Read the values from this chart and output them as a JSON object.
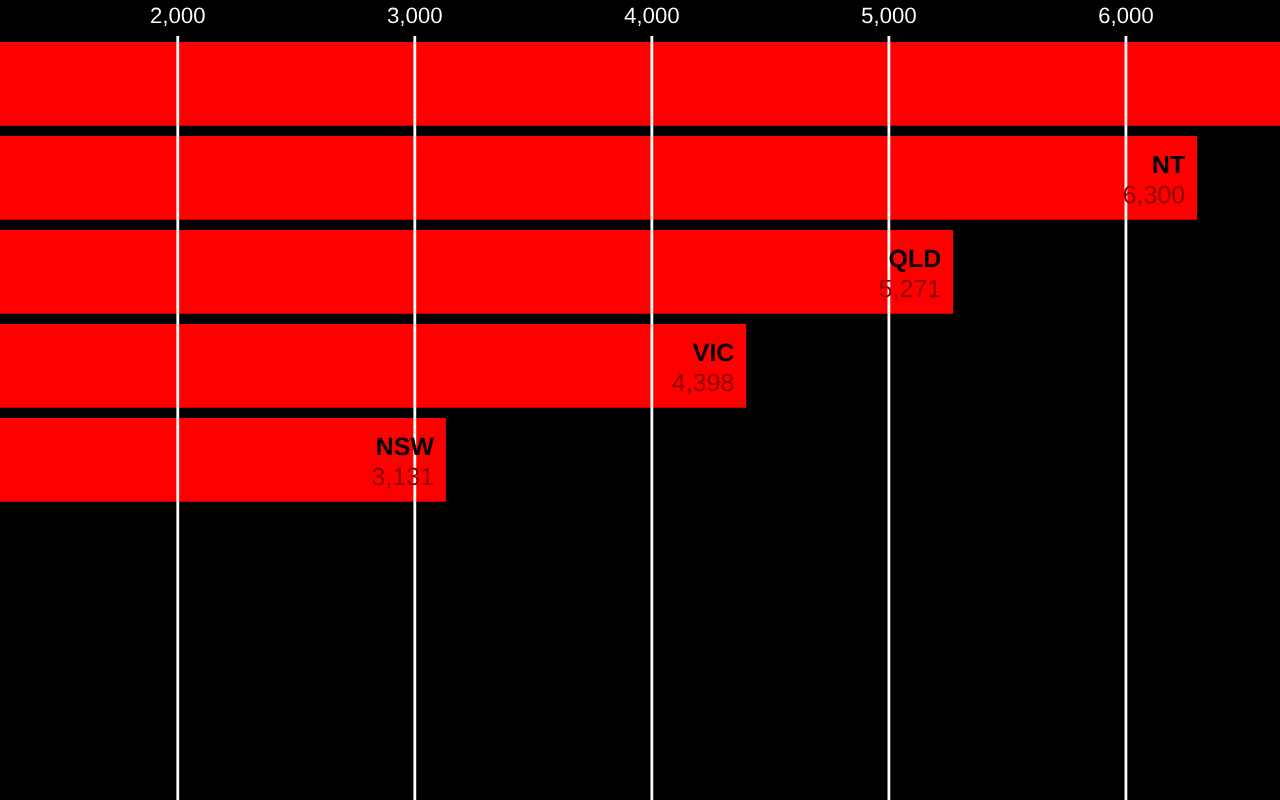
{
  "chart_data": {
    "type": "bar",
    "orientation": "horizontal",
    "categories": [
      null,
      "NT",
      "QLD",
      "VIC",
      "NSW"
    ],
    "values": [
      6650,
      6300,
      5271,
      4398,
      3131
    ],
    "value_labels": [
      null,
      "6,300",
      "5,271",
      "4,398",
      "3,131"
    ],
    "color": "#ff0000",
    "xlim": [
      1250,
      6650
    ],
    "xticks": [
      {
        "value": 2000,
        "label": "2,000"
      },
      {
        "value": 3000,
        "label": "3,000"
      },
      {
        "value": 4000,
        "label": "4,000"
      },
      {
        "value": 5000,
        "label": "5,000"
      },
      {
        "value": 6000,
        "label": "6,000"
      }
    ],
    "grid": "x",
    "legend": false
  }
}
